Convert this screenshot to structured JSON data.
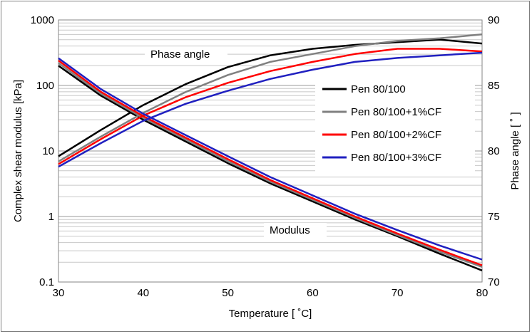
{
  "chart_data": {
    "type": "line",
    "title": "",
    "xlabel": "Temperature [ ˚C]",
    "ylabel": "Complex shear modulus [kPa]",
    "y2label": "Phase angle [ ˚ ]",
    "xlim": [
      30,
      80
    ],
    "ylim": [
      0.1,
      1000
    ],
    "y_scale": "log",
    "y2lim": [
      70,
      90
    ],
    "grid": true,
    "legend_position": "center-right",
    "x_ticks": [
      "30",
      "40",
      "50",
      "60",
      "70",
      "80"
    ],
    "y_ticks": [
      "0.1",
      "1",
      "10",
      "100",
      "1000"
    ],
    "y2_ticks": [
      "70",
      "75",
      "80",
      "85",
      "90"
    ],
    "annotations": [
      "Phase angle",
      "Modulus"
    ],
    "x": [
      30,
      35,
      40,
      45,
      50,
      55,
      60,
      65,
      70,
      75,
      80
    ],
    "series": [
      {
        "name": "Pen 80/100",
        "color": "#000000",
        "modulus": [
          200,
          70,
          30,
          14,
          6.5,
          3.2,
          1.7,
          0.9,
          0.5,
          0.27,
          0.15
        ],
        "phase_angle": [
          79.6,
          81.6,
          83.5,
          85.1,
          86.4,
          87.3,
          87.8,
          88.1,
          88.3,
          88.5,
          88.2
        ]
      },
      {
        "name": "Pen 80/100+1%CF",
        "color": "#808080",
        "modulus": [
          220,
          75,
          32,
          15,
          7,
          3.4,
          1.8,
          0.95,
          0.52,
          0.29,
          0.17
        ],
        "phase_angle": [
          79.2,
          81.1,
          82.9,
          84.5,
          85.8,
          86.8,
          87.4,
          88.0,
          88.4,
          88.6,
          88.9
        ]
      },
      {
        "name": "Pen 80/100+2%CF",
        "color": "#ff0000",
        "modulus": [
          240,
          80,
          34,
          16,
          7.5,
          3.6,
          1.9,
          1.0,
          0.55,
          0.31,
          0.18
        ],
        "phase_angle": [
          79.0,
          80.9,
          82.7,
          84.1,
          85.2,
          86.1,
          86.8,
          87.4,
          87.8,
          87.8,
          87.6
        ]
      },
      {
        "name": "Pen 80/100+3%CF",
        "color": "#2020c0",
        "modulus": [
          260,
          88,
          37,
          17.5,
          8.3,
          4.0,
          2.1,
          1.1,
          0.62,
          0.36,
          0.22
        ],
        "phase_angle": [
          78.8,
          80.6,
          82.3,
          83.6,
          84.6,
          85.5,
          86.2,
          86.8,
          87.1,
          87.3,
          87.5
        ]
      }
    ]
  }
}
